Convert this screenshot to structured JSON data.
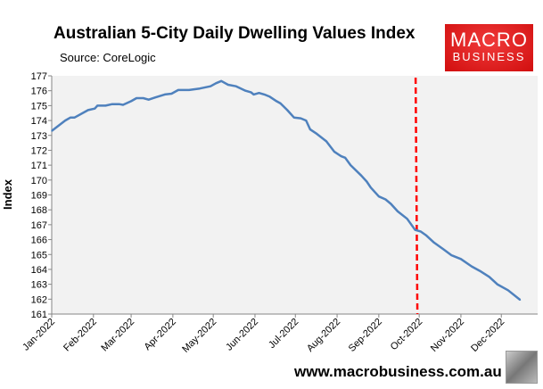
{
  "logo": {
    "line1": "MACRO",
    "line2": "BUSINESS",
    "color": "#e01b1b"
  },
  "footer": {
    "url": "www.macrobusiness.com.au"
  },
  "chart_data": {
    "type": "line",
    "title": "Australian 5-City Daily Dwelling Values Index",
    "subtitle": "Source: CoreLogic",
    "xlabel": "",
    "ylabel": "Index",
    "ylim": [
      161,
      177
    ],
    "yticks": [
      161,
      162,
      163,
      164,
      165,
      166,
      167,
      168,
      169,
      170,
      171,
      172,
      173,
      174,
      175,
      176,
      177
    ],
    "xlim": [
      "2022-01-01",
      "2022-12-28"
    ],
    "xticks": [
      {
        "date": "2022-01-01",
        "label": "Jan-2022"
      },
      {
        "date": "2022-02-01",
        "label": "Feb-2022"
      },
      {
        "date": "2022-03-01",
        "label": "Mar-2022"
      },
      {
        "date": "2022-04-01",
        "label": "Apr-2022"
      },
      {
        "date": "2022-05-01",
        "label": "May-2022"
      },
      {
        "date": "2022-06-01",
        "label": "Jun-2022"
      },
      {
        "date": "2022-07-01",
        "label": "Jul-2022"
      },
      {
        "date": "2022-08-01",
        "label": "Aug-2022"
      },
      {
        "date": "2022-09-01",
        "label": "Sep-2022"
      },
      {
        "date": "2022-10-01",
        "label": "Oct-2022"
      },
      {
        "date": "2022-11-01",
        "label": "Nov-2022"
      },
      {
        "date": "2022-12-01",
        "label": "Dec-2022"
      }
    ],
    "grid": false,
    "background": "#f2f2f2",
    "series": [
      {
        "color": "#4f81bd",
        "points": [
          [
            "2022-01-01",
            173.3
          ],
          [
            "2022-01-11",
            174.0
          ],
          [
            "2022-01-15",
            174.2
          ],
          [
            "2022-01-18",
            174.2
          ],
          [
            "2022-01-28",
            174.7
          ],
          [
            "2022-02-02",
            174.8
          ],
          [
            "2022-02-04",
            175.0
          ],
          [
            "2022-02-10",
            175.0
          ],
          [
            "2022-02-15",
            175.1
          ],
          [
            "2022-02-20",
            175.1
          ],
          [
            "2022-02-23",
            175.05
          ],
          [
            "2022-03-01",
            175.3
          ],
          [
            "2022-03-05",
            175.5
          ],
          [
            "2022-03-10",
            175.5
          ],
          [
            "2022-03-14",
            175.4
          ],
          [
            "2022-03-19",
            175.55
          ],
          [
            "2022-03-26",
            175.75
          ],
          [
            "2022-03-31",
            175.8
          ],
          [
            "2022-04-05",
            176.05
          ],
          [
            "2022-04-13",
            176.05
          ],
          [
            "2022-04-21",
            176.15
          ],
          [
            "2022-04-29",
            176.3
          ],
          [
            "2022-05-03",
            176.5
          ],
          [
            "2022-05-07",
            176.65
          ],
          [
            "2022-05-12",
            176.4
          ],
          [
            "2022-05-18",
            176.3
          ],
          [
            "2022-05-25",
            176.0
          ],
          [
            "2022-05-29",
            175.9
          ],
          [
            "2022-05-31",
            175.75
          ],
          [
            "2022-06-04",
            175.85
          ],
          [
            "2022-06-08",
            175.75
          ],
          [
            "2022-06-12",
            175.6
          ],
          [
            "2022-06-17",
            175.3
          ],
          [
            "2022-06-20",
            175.15
          ],
          [
            "2022-06-25",
            174.7
          ],
          [
            "2022-06-30",
            174.2
          ],
          [
            "2022-07-05",
            174.15
          ],
          [
            "2022-07-09",
            174.0
          ],
          [
            "2022-07-12",
            173.4
          ],
          [
            "2022-07-17",
            173.1
          ],
          [
            "2022-07-24",
            172.6
          ],
          [
            "2022-07-30",
            171.9
          ],
          [
            "2022-08-04",
            171.6
          ],
          [
            "2022-08-07",
            171.5
          ],
          [
            "2022-08-11",
            171.0
          ],
          [
            "2022-08-19",
            170.3
          ],
          [
            "2022-08-23",
            169.9
          ],
          [
            "2022-08-26",
            169.5
          ],
          [
            "2022-09-01",
            168.9
          ],
          [
            "2022-09-06",
            168.7
          ],
          [
            "2022-09-10",
            168.4
          ],
          [
            "2022-09-15",
            167.9
          ],
          [
            "2022-09-22",
            167.4
          ],
          [
            "2022-09-28",
            166.65
          ],
          [
            "2022-10-02",
            166.55
          ],
          [
            "2022-10-06",
            166.3
          ],
          [
            "2022-10-12",
            165.8
          ],
          [
            "2022-10-19",
            165.35
          ],
          [
            "2022-10-25",
            164.95
          ],
          [
            "2022-11-01",
            164.7
          ],
          [
            "2022-11-09",
            164.2
          ],
          [
            "2022-11-15",
            163.9
          ],
          [
            "2022-11-22",
            163.5
          ],
          [
            "2022-11-28",
            163.0
          ],
          [
            "2022-12-06",
            162.6
          ],
          [
            "2022-12-15",
            161.95
          ]
        ]
      }
    ],
    "annotations": [
      {
        "type": "vertical-dashed-line",
        "date": "2022-09-29",
        "color": "#ff0000"
      }
    ]
  }
}
